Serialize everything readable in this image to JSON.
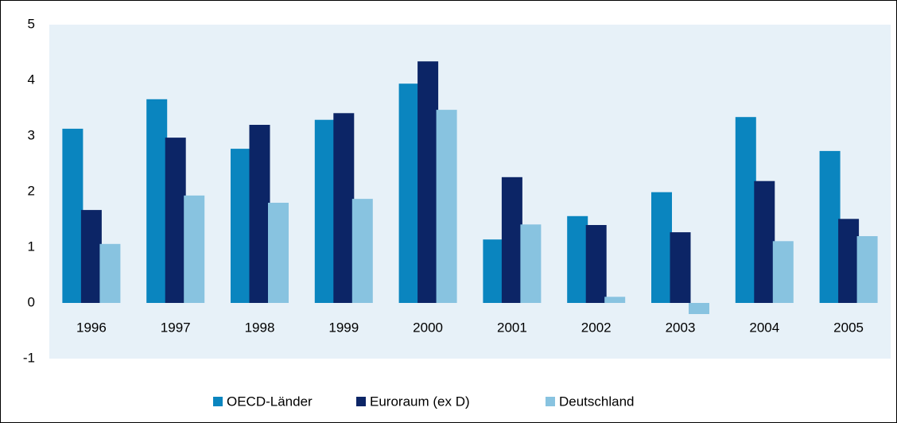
{
  "chart_data": {
    "type": "bar",
    "categories": [
      "1996",
      "1997",
      "1998",
      "1999",
      "2000",
      "2001",
      "2002",
      "2003",
      "2004",
      "2005"
    ],
    "series": [
      {
        "name": "OECD-Länder",
        "color": "#0a85bf",
        "values": [
          3.13,
          3.66,
          2.77,
          3.29,
          3.94,
          1.14,
          1.56,
          1.99,
          3.34,
          2.73
        ]
      },
      {
        "name": "Euroraum (ex D)",
        "color": "#0c2566",
        "values": [
          1.67,
          2.97,
          3.2,
          3.41,
          4.34,
          2.26,
          1.4,
          1.27,
          2.19,
          1.51
        ]
      },
      {
        "name": "Deutschland",
        "color": "#88c3e0",
        "values": [
          1.06,
          1.93,
          1.8,
          1.87,
          3.47,
          1.41,
          0.11,
          -0.2,
          1.11,
          1.2
        ]
      }
    ],
    "ylim": [
      -1,
      5
    ],
    "yticks": [
      -1,
      0,
      1,
      2,
      3,
      4,
      5
    ],
    "grid": false,
    "legend": "bottom"
  }
}
